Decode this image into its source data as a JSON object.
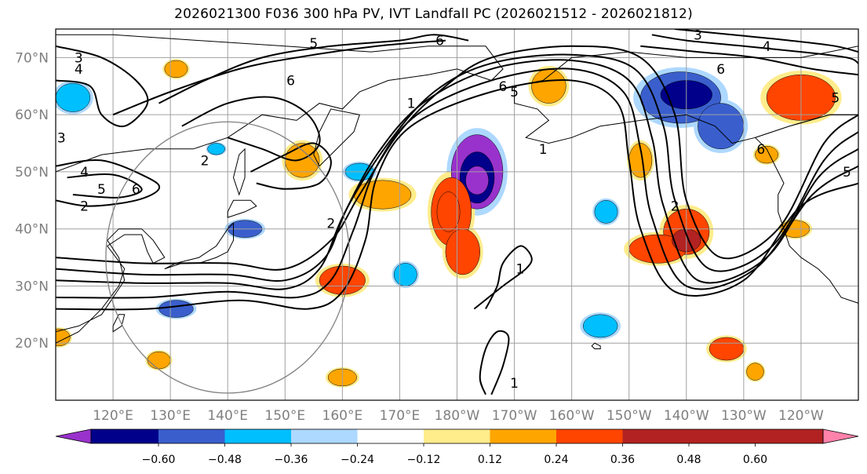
{
  "title": "2026021300 F036 300 hPa PV, IVT Landfall PC (2026021512 - 2026021812)",
  "map": {
    "projection": "PlateCarree",
    "lon_range": [
      110,
      250
    ],
    "lat_range": [
      10,
      75
    ],
    "grid": true,
    "coastlines": true,
    "lat_ticks": [
      {
        "value": 70,
        "label": "70°N"
      },
      {
        "value": 60,
        "label": "60°N"
      },
      {
        "value": 50,
        "label": "50°N"
      },
      {
        "value": 40,
        "label": "40°N"
      },
      {
        "value": 30,
        "label": "30°N"
      },
      {
        "value": 20,
        "label": "20°N"
      }
    ],
    "lon_ticks": [
      {
        "value": 120,
        "label": "120°E"
      },
      {
        "value": 130,
        "label": "130°E"
      },
      {
        "value": 140,
        "label": "140°E"
      },
      {
        "value": 150,
        "label": "150°E"
      },
      {
        "value": 160,
        "label": "160°E"
      },
      {
        "value": 170,
        "label": "170°E"
      },
      {
        "value": 180,
        "label": "180°W"
      },
      {
        "value": 190,
        "label": "170°W"
      },
      {
        "value": 200,
        "label": "160°W"
      },
      {
        "value": 210,
        "label": "150°W"
      },
      {
        "value": 220,
        "label": "140°W"
      },
      {
        "value": 230,
        "label": "130°W"
      },
      {
        "value": 240,
        "label": "120°W"
      }
    ],
    "circle": {
      "center_lon": 140,
      "center_lat": 35,
      "radius_deg": 25
    }
  },
  "contour_labels": [
    {
      "text": "5",
      "lon": 155,
      "lat": 72.5
    },
    {
      "text": "6",
      "lon": 177,
      "lat": 73
    },
    {
      "text": "3",
      "lon": 114,
      "lat": 70
    },
    {
      "text": "4",
      "lon": 114,
      "lat": 68
    },
    {
      "text": "6",
      "lon": 151,
      "lat": 66
    },
    {
      "text": "5",
      "lon": 190,
      "lat": 64
    },
    {
      "text": "6",
      "lon": 188,
      "lat": 65
    },
    {
      "text": "1",
      "lon": 172,
      "lat": 62
    },
    {
      "text": "1",
      "lon": 195,
      "lat": 54
    },
    {
      "text": "2",
      "lon": 136,
      "lat": 52
    },
    {
      "text": "4",
      "lon": 115,
      "lat": 50
    },
    {
      "text": "5",
      "lon": 118,
      "lat": 47
    },
    {
      "text": "6",
      "lon": 124,
      "lat": 47
    },
    {
      "text": "2",
      "lon": 115,
      "lat": 44
    },
    {
      "text": "2",
      "lon": 158,
      "lat": 41
    },
    {
      "text": "1",
      "lon": 191,
      "lat": 33
    },
    {
      "text": "1",
      "lon": 190,
      "lat": 13
    },
    {
      "text": "3",
      "lon": 222,
      "lat": 74
    },
    {
      "text": "4",
      "lon": 234,
      "lat": 72
    },
    {
      "text": "6",
      "lon": 226,
      "lat": 68
    },
    {
      "text": "5",
      "lon": 246,
      "lat": 63
    },
    {
      "text": "6",
      "lon": 233,
      "lat": 54
    },
    {
      "text": "2",
      "lon": 218,
      "lat": 44
    },
    {
      "text": "5",
      "lon": 248,
      "lat": 50
    },
    {
      "text": "3",
      "lon": 111,
      "lat": 56
    }
  ],
  "pv_contours": [
    {
      "level": 1,
      "points": [
        [
          183,
          26
        ],
        [
          188,
          30
        ],
        [
          192,
          33
        ],
        [
          193,
          35
        ],
        [
          191,
          37
        ],
        [
          188,
          34
        ],
        [
          187,
          30
        ],
        [
          185,
          26
        ]
      ]
    },
    {
      "level": 1,
      "points": [
        [
          186,
          11
        ],
        [
          188,
          16
        ],
        [
          189,
          21
        ],
        [
          187,
          22
        ],
        [
          185,
          19
        ],
        [
          184,
          14
        ],
        [
          185,
          11
        ]
      ]
    },
    {
      "level": 2,
      "points": [
        [
          110,
          35
        ],
        [
          125,
          34
        ],
        [
          140,
          34
        ],
        [
          150,
          33
        ],
        [
          158,
          38
        ],
        [
          163,
          46
        ],
        [
          170,
          57
        ],
        [
          178,
          65
        ],
        [
          186,
          70
        ],
        [
          200,
          72
        ],
        [
          212,
          70
        ],
        [
          218,
          60
        ],
        [
          220,
          45
        ],
        [
          226,
          35
        ],
        [
          236,
          40
        ],
        [
          244,
          55
        ],
        [
          250,
          60
        ]
      ]
    },
    {
      "level": 3,
      "points": [
        [
          110,
          33
        ],
        [
          125,
          32
        ],
        [
          140,
          32
        ],
        [
          150,
          31
        ],
        [
          157,
          35
        ],
        [
          161,
          44
        ],
        [
          168,
          55
        ],
        [
          176,
          64
        ],
        [
          186,
          69
        ],
        [
          200,
          70.5
        ],
        [
          211,
          68
        ],
        [
          216,
          58
        ],
        [
          218,
          45
        ],
        [
          224,
          33
        ],
        [
          235,
          37
        ],
        [
          244,
          52
        ],
        [
          250,
          57
        ]
      ]
    },
    {
      "level": 4,
      "points": [
        [
          110,
          31
        ],
        [
          125,
          30.5
        ],
        [
          140,
          30.5
        ],
        [
          150,
          29.5
        ],
        [
          156,
          33
        ],
        [
          160,
          42
        ],
        [
          166,
          53
        ],
        [
          174,
          62
        ],
        [
          186,
          68
        ],
        [
          200,
          69.5
        ],
        [
          210,
          66
        ],
        [
          214,
          56
        ],
        [
          216,
          44
        ],
        [
          222,
          31
        ],
        [
          234,
          35
        ],
        [
          243,
          49
        ],
        [
          250,
          54
        ]
      ]
    },
    {
      "level": 5,
      "points": [
        [
          110,
          28
        ],
        [
          126,
          28
        ],
        [
          140,
          29
        ],
        [
          152,
          28
        ],
        [
          158,
          31
        ],
        [
          162,
          40
        ],
        [
          166,
          51
        ],
        [
          173,
          60
        ],
        [
          186,
          66
        ],
        [
          200,
          68
        ],
        [
          209,
          64
        ],
        [
          212,
          54
        ],
        [
          214,
          42
        ],
        [
          220,
          30
        ],
        [
          232,
          33
        ],
        [
          242,
          46
        ],
        [
          250,
          51
        ]
      ]
    },
    {
      "level": 6,
      "points": [
        [
          110,
          26
        ],
        [
          126,
          26
        ],
        [
          142,
          27.5
        ],
        [
          154,
          26
        ],
        [
          160,
          29
        ],
        [
          164,
          38
        ],
        [
          166,
          49
        ],
        [
          172,
          58
        ],
        [
          186,
          64
        ],
        [
          200,
          66
        ],
        [
          208,
          62
        ],
        [
          210,
          52
        ],
        [
          212,
          40
        ],
        [
          218,
          29
        ],
        [
          230,
          31
        ],
        [
          240,
          44
        ],
        [
          250,
          48
        ]
      ]
    },
    {
      "level": 4,
      "points": [
        [
          110,
          51
        ],
        [
          118,
          52
        ],
        [
          126,
          49
        ],
        [
          128,
          47
        ],
        [
          124,
          45
        ],
        [
          116,
          44
        ],
        [
          110,
          45
        ]
      ]
    },
    {
      "level": 5,
      "points": [
        [
          112,
          49
        ],
        [
          120,
          49.5
        ],
        [
          125,
          47
        ],
        [
          121,
          45.5
        ],
        [
          113,
          46
        ]
      ]
    },
    {
      "level": 3,
      "points": [
        [
          110,
          72
        ],
        [
          118,
          70
        ],
        [
          124,
          66
        ],
        [
          126,
          62
        ],
        [
          122,
          58
        ],
        [
          118,
          60
        ],
        [
          116,
          65
        ],
        [
          110,
          66
        ]
      ]
    },
    {
      "level": 5,
      "points": [
        [
          128,
          62
        ],
        [
          136,
          66
        ],
        [
          146,
          70
        ],
        [
          158,
          72
        ],
        [
          170,
          73
        ],
        [
          176,
          74
        ],
        [
          182,
          73
        ]
      ]
    },
    {
      "level": 6,
      "points": [
        [
          120,
          60
        ],
        [
          130,
          64
        ],
        [
          142,
          68
        ],
        [
          152,
          70
        ],
        [
          166,
          72
        ],
        [
          178,
          73
        ]
      ]
    },
    {
      "level": 3,
      "points": [
        [
          132,
          58
        ],
        [
          140,
          62
        ],
        [
          148,
          63
        ],
        [
          154,
          60
        ],
        [
          156,
          55
        ],
        [
          152,
          52
        ],
        [
          146,
          54
        ],
        [
          140,
          56
        ]
      ]
    },
    {
      "level": 2,
      "points": [
        [
          144,
          50
        ],
        [
          150,
          53
        ],
        [
          155,
          55
        ],
        [
          158,
          52
        ],
        [
          156,
          48
        ],
        [
          150,
          47
        ],
        [
          145,
          48
        ]
      ]
    },
    {
      "level": 6,
      "points": [
        [
          214,
          74
        ],
        [
          220,
          73
        ],
        [
          230,
          72
        ],
        [
          240,
          71
        ],
        [
          248,
          70
        ],
        [
          250,
          69
        ]
      ]
    },
    {
      "level": 5,
      "points": [
        [
          212,
          72
        ],
        [
          222,
          71
        ],
        [
          232,
          70
        ],
        [
          242,
          68
        ],
        [
          250,
          67
        ]
      ]
    },
    {
      "level": 4,
      "points": [
        [
          218,
          75
        ],
        [
          228,
          74
        ],
        [
          238,
          73
        ],
        [
          246,
          72
        ],
        [
          250,
          71
        ]
      ]
    }
  ],
  "ivt_pc_field": {
    "description": "IVT Landfall PC shading",
    "blobs": [
      {
        "lon": 183.5,
        "lat": 50,
        "rx": 4.5,
        "ry": 6.5,
        "value": -0.62
      },
      {
        "lon": 183.5,
        "lat": 49,
        "rx": 3,
        "ry": 4.5,
        "value": -0.54
      },
      {
        "lon": 183.5,
        "lat": 48.5,
        "rx": 2,
        "ry": 2.5,
        "value": -0.65
      },
      {
        "lon": 219,
        "lat": 63,
        "rx": 7,
        "ry": 4.5,
        "value": -0.42
      },
      {
        "lon": 226,
        "lat": 58,
        "rx": 4,
        "ry": 4,
        "value": -0.4
      },
      {
        "lon": 220,
        "lat": 63.5,
        "rx": 4.5,
        "ry": 2.5,
        "value": -0.5
      },
      {
        "lon": 179,
        "lat": 43,
        "rx": 3.5,
        "ry": 6,
        "value": 0.4
      },
      {
        "lon": 181,
        "lat": 36,
        "rx": 3,
        "ry": 4,
        "value": 0.4
      },
      {
        "lon": 178.5,
        "lat": 43,
        "rx": 2,
        "ry": 3.5,
        "value": 0.46
      },
      {
        "lon": 220,
        "lat": 39.5,
        "rx": 4,
        "ry": 4,
        "value": 0.42
      },
      {
        "lon": 215,
        "lat": 36.5,
        "rx": 5,
        "ry": 2.5,
        "value": 0.4
      },
      {
        "lon": 220,
        "lat": 38,
        "rx": 2.5,
        "ry": 2,
        "value": 0.5
      },
      {
        "lon": 240,
        "lat": 63,
        "rx": 6,
        "ry": 4,
        "value": 0.4
      },
      {
        "lon": 196,
        "lat": 65,
        "rx": 3,
        "ry": 3,
        "value": 0.3
      },
      {
        "lon": 153,
        "lat": 52,
        "rx": 3,
        "ry": 3,
        "value": 0.28
      },
      {
        "lon": 167,
        "lat": 46,
        "rx": 5,
        "ry": 2.5,
        "value": 0.28
      },
      {
        "lon": 160,
        "lat": 31,
        "rx": 4,
        "ry": 2.5,
        "value": 0.36
      },
      {
        "lon": 113,
        "lat": 63,
        "rx": 3,
        "ry": 2.5,
        "value": -0.3
      },
      {
        "lon": 143,
        "lat": 40,
        "rx": 3,
        "ry": 1.5,
        "value": -0.4
      },
      {
        "lon": 131,
        "lat": 26,
        "rx": 3,
        "ry": 1.5,
        "value": -0.4
      },
      {
        "lon": 205,
        "lat": 23,
        "rx": 3,
        "ry": 2,
        "value": -0.3
      },
      {
        "lon": 227,
        "lat": 19,
        "rx": 3,
        "ry": 2,
        "value": 0.42
      },
      {
        "lon": 239,
        "lat": 40,
        "rx": 2.5,
        "ry": 1.5,
        "value": 0.3
      },
      {
        "lon": 234,
        "lat": 53,
        "rx": 2,
        "ry": 1.5,
        "value": 0.28
      },
      {
        "lon": 212,
        "lat": 52,
        "rx": 2,
        "ry": 3,
        "value": 0.3
      },
      {
        "lon": 206,
        "lat": 43,
        "rx": 2,
        "ry": 2,
        "value": -0.3
      },
      {
        "lon": 171,
        "lat": 32,
        "rx": 2,
        "ry": 2,
        "value": -0.3
      },
      {
        "lon": 110.5,
        "lat": 21,
        "rx": 2,
        "ry": 1.5,
        "value": 0.3
      },
      {
        "lon": 163,
        "lat": 50,
        "rx": 2.5,
        "ry": 1.5,
        "value": -0.26
      },
      {
        "lon": 131,
        "lat": 68,
        "rx": 2,
        "ry": 1.5,
        "value": 0.28
      },
      {
        "lon": 138,
        "lat": 54,
        "rx": 1.5,
        "ry": 1,
        "value": -0.3
      },
      {
        "lon": 160,
        "lat": 14,
        "rx": 2.5,
        "ry": 1.5,
        "value": 0.3
      },
      {
        "lon": 128,
        "lat": 17,
        "rx": 2,
        "ry": 1.5,
        "value": 0.3
      },
      {
        "lon": 232,
        "lat": 15,
        "rx": 1.5,
        "ry": 1.5,
        "value": 0.3
      }
    ]
  },
  "colorbar": {
    "colors": [
      "#9932cc",
      "#00008b",
      "#3a5fcd",
      "#00bfff",
      "#add8ff",
      "#ffffff",
      "#ffec8b",
      "#ffa500",
      "#ff4500",
      "#b22222",
      "#ff82ab"
    ],
    "ticks": [
      "−0.60",
      "−0.48",
      "−0.36",
      "−0.24",
      "−0.12",
      "0.12",
      "0.24",
      "0.36",
      "0.48",
      "0.60"
    ],
    "bounds": [
      -0.6,
      -0.48,
      -0.36,
      -0.24,
      -0.12,
      0.12,
      0.24,
      0.36,
      0.48,
      0.6
    ]
  },
  "colors": {
    "grid": "#a0a0a0",
    "axis_label": "#7f7f7f",
    "contour": "#000000",
    "circle": "#808080"
  }
}
